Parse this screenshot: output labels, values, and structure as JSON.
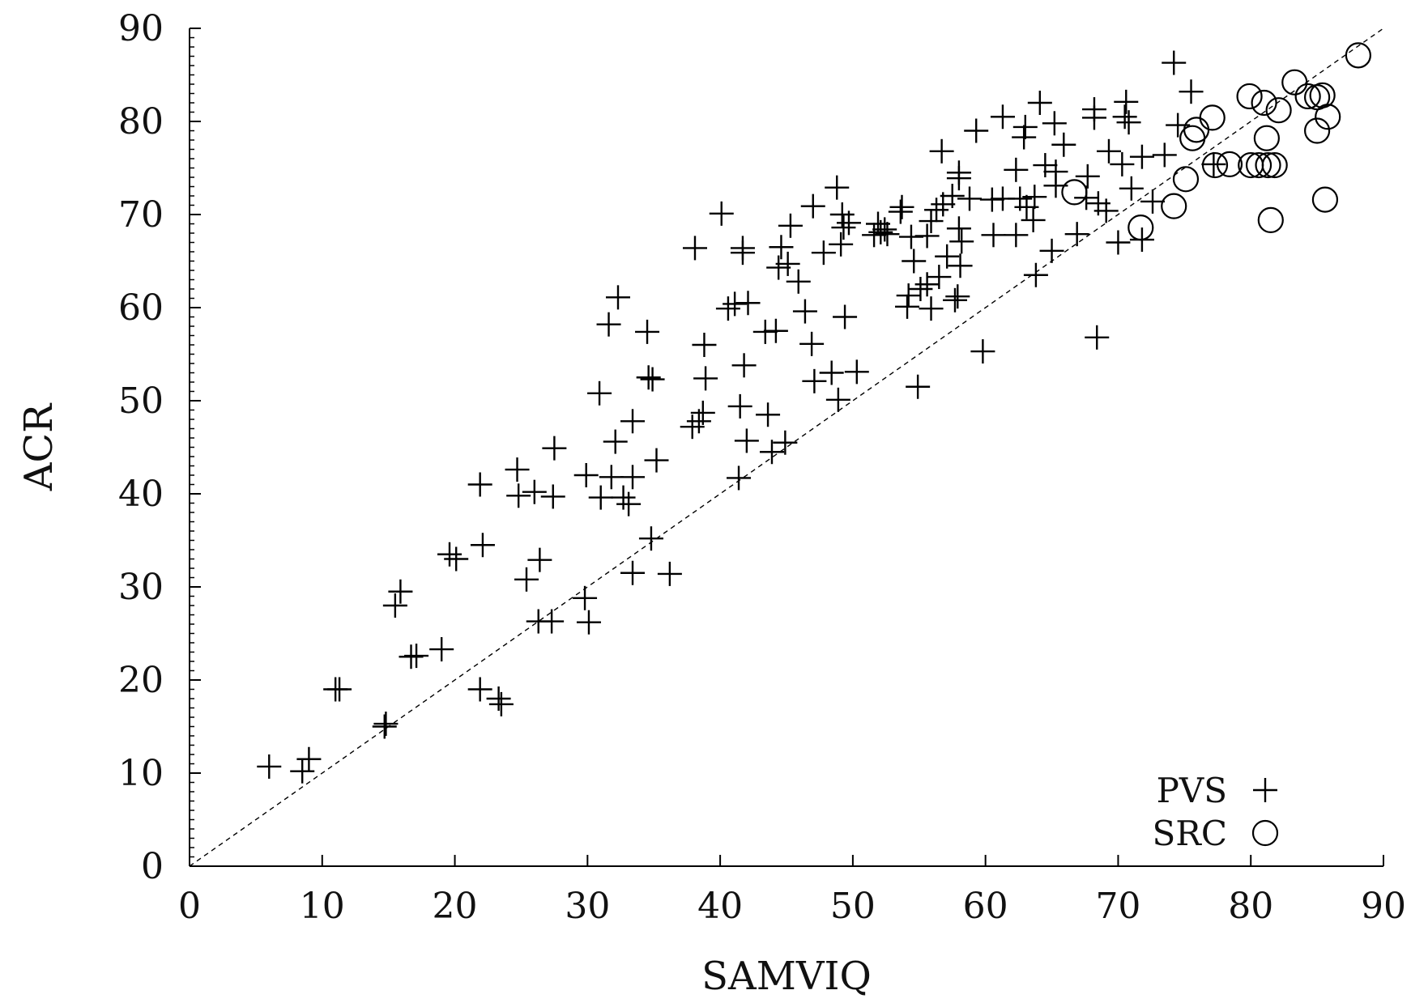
{
  "chart_data": {
    "type": "scatter",
    "title": "",
    "xlabel": "SAMVIQ",
    "ylabel": "ACR",
    "xlim": [
      0,
      90
    ],
    "ylim": [
      0,
      90
    ],
    "x_ticks": [
      "0",
      "10",
      "20",
      "30",
      "40",
      "50",
      "60",
      "70",
      "80",
      "90"
    ],
    "y_ticks": [
      "0",
      "10",
      "20",
      "30",
      "40",
      "50",
      "60",
      "70",
      "80",
      "90"
    ],
    "grid": false,
    "legend_position": "bottom-right",
    "reference_line": {
      "x": [
        0,
        90
      ],
      "y": [
        0,
        90
      ],
      "style": "dashed"
    },
    "series": [
      {
        "name": "PVS",
        "marker": "plus",
        "points": [
          [
            6,
            10.7
          ],
          [
            8.5,
            10.2
          ],
          [
            9,
            11.5
          ],
          [
            11,
            19
          ],
          [
            11.3,
            19
          ],
          [
            14.7,
            15
          ],
          [
            14.8,
            15.3
          ],
          [
            15.5,
            28
          ],
          [
            15.9,
            29.5
          ],
          [
            16.7,
            22.5
          ],
          [
            17.1,
            22.6
          ],
          [
            19,
            23.3
          ],
          [
            19.6,
            33.5
          ],
          [
            20.1,
            33
          ],
          [
            21.9,
            19
          ],
          [
            21.9,
            41
          ],
          [
            22.1,
            34.5
          ],
          [
            23.3,
            18
          ],
          [
            23.5,
            17.4
          ],
          [
            24.7,
            42.6
          ],
          [
            24.8,
            39.8
          ],
          [
            25.4,
            30.8
          ],
          [
            26,
            40.2
          ],
          [
            26.3,
            26.3
          ],
          [
            26.4,
            32.9
          ],
          [
            27.4,
            39.7
          ],
          [
            27.3,
            26.3
          ],
          [
            27.5,
            44.9
          ],
          [
            29.8,
            28.8
          ],
          [
            29.9,
            42
          ],
          [
            30.1,
            26.2
          ],
          [
            30.9,
            50.8
          ],
          [
            31,
            39.6
          ],
          [
            31.6,
            58.2
          ],
          [
            31.8,
            41.8
          ],
          [
            32.1,
            45.6
          ],
          [
            32.3,
            61.1
          ],
          [
            32.7,
            39.6
          ],
          [
            33.1,
            38.9
          ],
          [
            33.4,
            47.8
          ],
          [
            33.4,
            31.5
          ],
          [
            33.4,
            41.8
          ],
          [
            34.5,
            57.4
          ],
          [
            34.6,
            52.5
          ],
          [
            34.9,
            52.3
          ],
          [
            34.8,
            35.2
          ],
          [
            35.2,
            43.6
          ],
          [
            36.2,
            31.4
          ],
          [
            37.9,
            47.2
          ],
          [
            38.1,
            66.4
          ],
          [
            38.4,
            47.8
          ],
          [
            38.7,
            48.7
          ],
          [
            38.8,
            56
          ],
          [
            38.9,
            52.4
          ],
          [
            40.1,
            70.1
          ],
          [
            40.6,
            59.9
          ],
          [
            41.1,
            60.4
          ],
          [
            41.4,
            41.7
          ],
          [
            41.5,
            49.4
          ],
          [
            41.7,
            65.9
          ],
          [
            41.7,
            66.4
          ],
          [
            41.8,
            53.8
          ],
          [
            42,
            45.7
          ],
          [
            42.1,
            60.5
          ],
          [
            43.4,
            57.4
          ],
          [
            43.6,
            48.5
          ],
          [
            43.9,
            44.5
          ],
          [
            44.2,
            57.5
          ],
          [
            44.4,
            64.3
          ],
          [
            44.6,
            66.5
          ],
          [
            44.9,
            45.5
          ],
          [
            45.1,
            64.7
          ],
          [
            45.3,
            68.8
          ],
          [
            45.9,
            62.8
          ],
          [
            46.4,
            59.6
          ],
          [
            46.9,
            56.1
          ],
          [
            47,
            70.9
          ],
          [
            47.1,
            52.1
          ],
          [
            47.8,
            65.9
          ],
          [
            48.4,
            53
          ],
          [
            48.8,
            72.9
          ],
          [
            48.9,
            50.1
          ],
          [
            49.1,
            66.8
          ],
          [
            49.2,
            70
          ],
          [
            49.3,
            68.6
          ],
          [
            49.4,
            59
          ],
          [
            49.7,
            69.1
          ],
          [
            50.3,
            53.1
          ],
          [
            51.6,
            67.8
          ],
          [
            51.9,
            69
          ],
          [
            52.1,
            68.1
          ],
          [
            52.4,
            68.4
          ],
          [
            52.6,
            67.9
          ],
          [
            53.6,
            70.3
          ],
          [
            53.7,
            70.8
          ],
          [
            54.1,
            60.1
          ],
          [
            54.2,
            61.3
          ],
          [
            54.4,
            67.6
          ],
          [
            54.6,
            65
          ],
          [
            54.9,
            51.5
          ],
          [
            55.1,
            62
          ],
          [
            55.6,
            62.5
          ],
          [
            55.6,
            67.7
          ],
          [
            55.9,
            59.9
          ],
          [
            55.9,
            69.3
          ],
          [
            56.3,
            70.5
          ],
          [
            56.5,
            63.3
          ],
          [
            56.7,
            76.8
          ],
          [
            56.8,
            71.1
          ],
          [
            57.1,
            65.5
          ],
          [
            57.5,
            72
          ],
          [
            57.7,
            60.8
          ],
          [
            57.9,
            61.2
          ],
          [
            58,
            73.9
          ],
          [
            58,
            74.5
          ],
          [
            58,
            68.5
          ],
          [
            58.1,
            64.5
          ],
          [
            58.2,
            67.1
          ],
          [
            58.8,
            71.7
          ],
          [
            59.3,
            79
          ],
          [
            59.8,
            55.3
          ],
          [
            60.5,
            71.6
          ],
          [
            60.6,
            67.8
          ],
          [
            61.3,
            71.7
          ],
          [
            61.3,
            80.5
          ],
          [
            62.3,
            74.8
          ],
          [
            62.3,
            67.8
          ],
          [
            62.6,
            71.7
          ],
          [
            62.9,
            78.3
          ],
          [
            63,
            79.4
          ],
          [
            63.1,
            70.8
          ],
          [
            63.6,
            69.4
          ],
          [
            63.7,
            71.9
          ],
          [
            63.8,
            63.5
          ],
          [
            64.1,
            82
          ],
          [
            64.5,
            75.3
          ],
          [
            65,
            66.1
          ],
          [
            65.2,
            79.8
          ],
          [
            65.3,
            74.6
          ],
          [
            65.3,
            73.1
          ],
          [
            65.9,
            77.5
          ],
          [
            66.9,
            67.9
          ],
          [
            67.6,
            71.8
          ],
          [
            67.7,
            74.1
          ],
          [
            68.2,
            81.3
          ],
          [
            68.2,
            80.4
          ],
          [
            68.4,
            56.8
          ],
          [
            68.5,
            71.2
          ],
          [
            69.1,
            70.4
          ],
          [
            69.3,
            76.8
          ],
          [
            70,
            67
          ],
          [
            70.3,
            75.4
          ],
          [
            70.5,
            80.5
          ],
          [
            70.6,
            82.1
          ],
          [
            70.8,
            79.9
          ],
          [
            71,
            72.8
          ],
          [
            71.8,
            76.2
          ],
          [
            71.8,
            67.3
          ],
          [
            72.6,
            71.4
          ],
          [
            73.5,
            76.4
          ],
          [
            74.2,
            86.3
          ],
          [
            74.5,
            79.6
          ],
          [
            75.5,
            83.2
          ],
          [
            77.2,
            75.4
          ]
        ]
      },
      {
        "name": "SRC",
        "marker": "circle",
        "points": [
          [
            66.7,
            72.4
          ],
          [
            71.7,
            68.6
          ],
          [
            74.2,
            70.9
          ],
          [
            75.1,
            73.8
          ],
          [
            75.6,
            78.2
          ],
          [
            75.9,
            79.1
          ],
          [
            77.1,
            80.4
          ],
          [
            77.3,
            75.3
          ],
          [
            78.4,
            75.4
          ],
          [
            79.9,
            82.7
          ],
          [
            80,
            75.3
          ],
          [
            80.6,
            75.3
          ],
          [
            81,
            82
          ],
          [
            81.2,
            78.2
          ],
          [
            81.3,
            75.3
          ],
          [
            81.5,
            69.4
          ],
          [
            81.8,
            75.3
          ],
          [
            82.1,
            81.2
          ],
          [
            83.3,
            84.2
          ],
          [
            84.3,
            82.7
          ],
          [
            85,
            82.6
          ],
          [
            85,
            79
          ],
          [
            85.4,
            82.8
          ],
          [
            85.6,
            71.6
          ],
          [
            85.8,
            80.5
          ],
          [
            88.1,
            87.1
          ]
        ]
      }
    ]
  }
}
